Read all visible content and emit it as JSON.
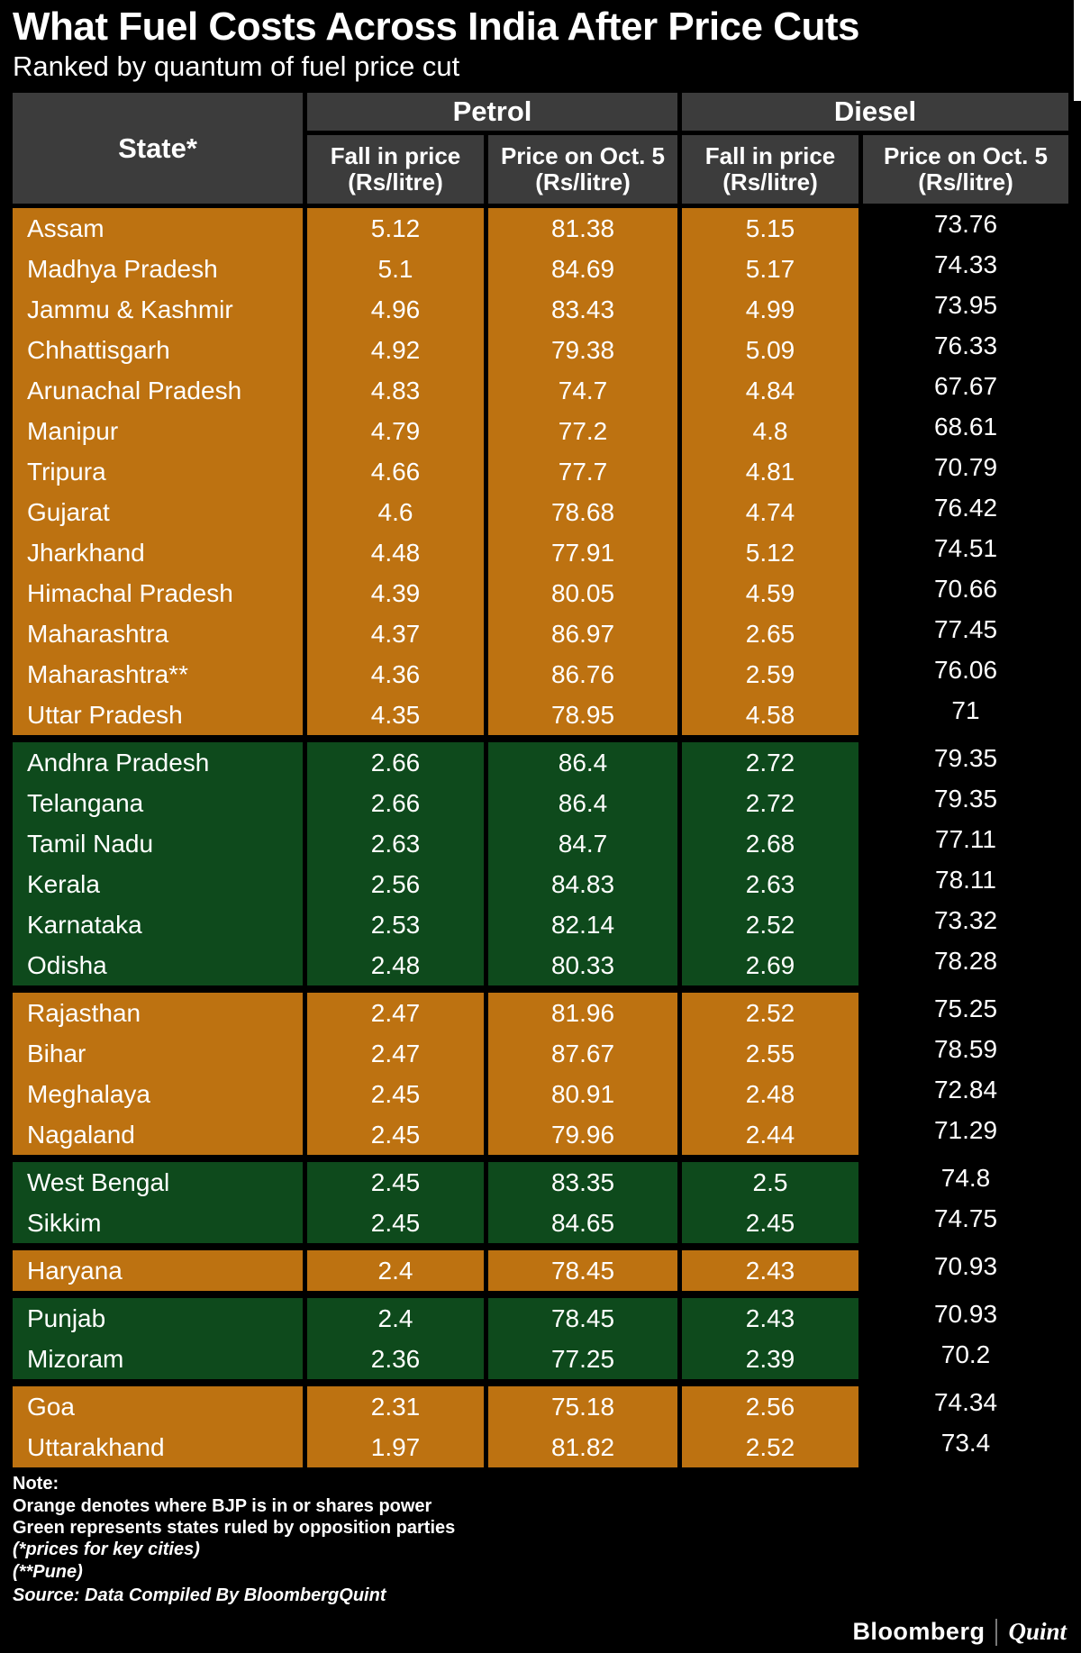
{
  "title": "What Fuel Costs Across India After Price Cuts",
  "subtitle": "Ranked by quantum of fuel price cut",
  "colors": {
    "bjp_orange": "#bd7211",
    "opposition_green": "#0e4a1c",
    "header_gray": "#3c3c3c",
    "background": "#000000"
  },
  "table_header": {
    "corner_header": "State*",
    "petrol_label": "Petrol",
    "diesel_label": "Diesel",
    "fall_line1": "Fall in price",
    "fall_line2": "(Rs/litre)",
    "price_line1": "Price on Oct. 5",
    "price_line2": "(Rs/litre)"
  },
  "chart_data": {
    "type": "table",
    "title": "What Fuel Costs Across India After Price Cuts",
    "subtitle": "Ranked by quantum of fuel price cut",
    "columns": [
      "State",
      "Petrol Fall in price (Rs/litre)",
      "Petrol Price on Oct. 5 (Rs/litre)",
      "Diesel Fall in price (Rs/litre)",
      "Diesel Price on Oct. 5 (Rs/litre)"
    ],
    "color_legend": {
      "orange": "BJP is in or shares power",
      "green": "States ruled by opposition parties"
    },
    "groups": [
      {
        "party": "bjp",
        "rows": [
          [
            "Assam",
            "5.12",
            "81.38",
            "5.15",
            "73.76"
          ],
          [
            "Madhya Pradesh",
            "5.1",
            "84.69",
            "5.17",
            "74.33"
          ],
          [
            "Jammu & Kashmir",
            "4.96",
            "83.43",
            "4.99",
            "73.95"
          ],
          [
            "Chhattisgarh",
            "4.92",
            "79.38",
            "5.09",
            "76.33"
          ],
          [
            "Arunachal Pradesh",
            "4.83",
            "74.7",
            "4.84",
            "67.67"
          ],
          [
            "Manipur",
            "4.79",
            "77.2",
            "4.8",
            "68.61"
          ],
          [
            "Tripura",
            "4.66",
            "77.7",
            "4.81",
            "70.79"
          ],
          [
            "Gujarat",
            "4.6",
            "78.68",
            "4.74",
            "76.42"
          ],
          [
            "Jharkhand",
            "4.48",
            "77.91",
            "5.12",
            "74.51"
          ],
          [
            "Himachal Pradesh",
            "4.39",
            "80.05",
            "4.59",
            "70.66"
          ],
          [
            "Maharashtra",
            "4.37",
            "86.97",
            "2.65",
            "77.45"
          ],
          [
            "Maharashtra**",
            "4.36",
            "86.76",
            "2.59",
            "76.06"
          ],
          [
            "Uttar Pradesh",
            "4.35",
            "78.95",
            "4.58",
            "71"
          ]
        ]
      },
      {
        "party": "opposition",
        "rows": [
          [
            "Andhra Pradesh",
            "2.66",
            "86.4",
            "2.72",
            "79.35"
          ],
          [
            "Telangana",
            "2.66",
            "86.4",
            "2.72",
            "79.35"
          ],
          [
            "Tamil Nadu",
            "2.63",
            "84.7",
            "2.68",
            "77.11"
          ],
          [
            "Kerala",
            "2.56",
            "84.83",
            "2.63",
            "78.11"
          ],
          [
            "Karnataka",
            "2.53",
            "82.14",
            "2.52",
            "73.32"
          ],
          [
            "Odisha",
            "2.48",
            "80.33",
            "2.69",
            "78.28"
          ]
        ]
      },
      {
        "party": "bjp",
        "rows": [
          [
            "Rajasthan",
            "2.47",
            "81.96",
            "2.52",
            "75.25"
          ],
          [
            "Bihar",
            "2.47",
            "87.67",
            "2.55",
            "78.59"
          ],
          [
            "Meghalaya",
            "2.45",
            "80.91",
            "2.48",
            "72.84"
          ],
          [
            "Nagaland",
            "2.45",
            "79.96",
            "2.44",
            "71.29"
          ]
        ]
      },
      {
        "party": "opposition",
        "rows": [
          [
            "West Bengal",
            "2.45",
            "83.35",
            "2.5",
            "74.8"
          ],
          [
            "Sikkim",
            "2.45",
            "84.65",
            "2.45",
            "74.75"
          ]
        ]
      },
      {
        "party": "bjp",
        "rows": [
          [
            "Haryana",
            "2.4",
            "78.45",
            "2.43",
            "70.93"
          ]
        ]
      },
      {
        "party": "opposition",
        "rows": [
          [
            "Punjab",
            "2.4",
            "78.45",
            "2.43",
            "70.93"
          ],
          [
            "Mizoram",
            "2.36",
            "77.25",
            "2.39",
            "70.2"
          ]
        ]
      },
      {
        "party": "bjp",
        "rows": [
          [
            "Goa",
            "2.31",
            "75.18",
            "2.56",
            "74.34"
          ],
          [
            "Uttarakhand",
            "1.97",
            "81.82",
            "2.52",
            "73.4"
          ]
        ]
      }
    ]
  },
  "notes": {
    "heading": "Note:",
    "line_orange": "Orange denotes where BJP is in or shares power",
    "line_green": "Green represents states ruled by opposition parties",
    "line_cities": "(*prices for key cities)",
    "line_pune": "(**Pune)",
    "source": "Source: Data Compiled By BloombergQuint"
  },
  "footer": {
    "brand_left": "Bloomberg",
    "brand_right": "Quint"
  }
}
